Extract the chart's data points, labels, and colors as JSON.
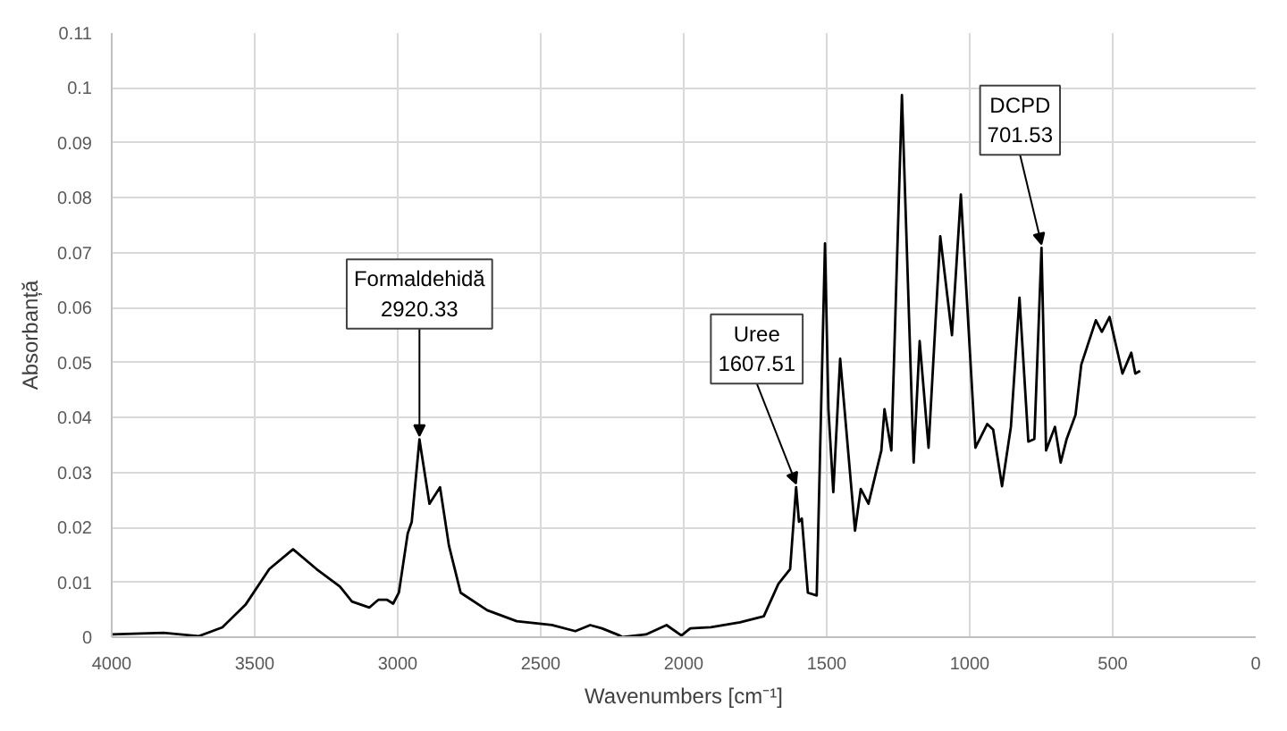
{
  "chart_data": {
    "type": "line",
    "xlabel": "Wavenumbers [cm⁻¹]",
    "ylabel": "Absorbanță",
    "xlim": [
      4000,
      0
    ],
    "ylim": [
      0,
      0.11
    ],
    "xticks": [
      4000,
      3500,
      3000,
      2500,
      2000,
      1500,
      1000,
      500,
      0
    ],
    "yticks": [
      0,
      0.01,
      0.02,
      0.03,
      0.04,
      0.05,
      0.06,
      0.07,
      0.08,
      0.09,
      0.1,
      0.11
    ],
    "grid": true,
    "marker": "none",
    "line_style": "solid",
    "series": [
      {
        "color": "#000000",
        "x": [
          4000,
          3819,
          3695,
          3613,
          3531,
          3449,
          3366,
          3284,
          3202,
          3160,
          3099,
          3068,
          3037,
          3016,
          2996,
          2965,
          2951,
          2924,
          2889,
          2852,
          2821,
          2780,
          2687,
          2584,
          2461,
          2379,
          2327,
          2286,
          2224,
          2214,
          2132,
          2060,
          2008,
          1977,
          1905,
          1803,
          1720,
          1669,
          1628,
          1607,
          1597,
          1587,
          1566,
          1535,
          1506,
          1494,
          1477,
          1453,
          1401,
          1381,
          1354,
          1329,
          1309,
          1298,
          1274,
          1237,
          1196,
          1175,
          1144,
          1103,
          1062,
          1031,
          980,
          939,
          918,
          887,
          856,
          826,
          795,
          774,
          749,
          733,
          702,
          682,
          661,
          630,
          610,
          559,
          538,
          511,
          466,
          435,
          421,
          404
        ],
        "values": [
          0.0005,
          0.0008,
          0.0002,
          0.0018,
          0.006,
          0.0124,
          0.016,
          0.0124,
          0.0092,
          0.0065,
          0.0054,
          0.0068,
          0.0068,
          0.0061,
          0.0081,
          0.0189,
          0.021,
          0.036,
          0.0243,
          0.0273,
          0.0167,
          0.0081,
          0.0049,
          0.0029,
          0.0022,
          0.0011,
          0.0022,
          0.0016,
          0.0003,
          0.0,
          0.0005,
          0.0022,
          0.0003,
          0.0016,
          0.0018,
          0.0027,
          0.0038,
          0.0097,
          0.0124,
          0.0273,
          0.021,
          0.0216,
          0.0081,
          0.0076,
          0.0717,
          0.0415,
          0.0264,
          0.0507,
          0.0194,
          0.027,
          0.0243,
          0.0297,
          0.034,
          0.0415,
          0.034,
          0.0987,
          0.0318,
          0.0539,
          0.0345,
          0.073,
          0.055,
          0.0806,
          0.0345,
          0.0388,
          0.0378,
          0.0275,
          0.0383,
          0.0618,
          0.0356,
          0.0361,
          0.0709,
          0.034,
          0.0383,
          0.0318,
          0.0361,
          0.0405,
          0.0496,
          0.0577,
          0.0556,
          0.0583,
          0.048,
          0.0518,
          0.048,
          0.0485
        ]
      }
    ],
    "annotations": [
      {
        "text": "Formaldehidă\n2920.33",
        "x": 2924,
        "y": 0.036
      },
      {
        "text": "Uree\n1607.51",
        "x": 1607,
        "y": 0.0273
      },
      {
        "text": "DCPD\n701.53",
        "x": 749,
        "y": 0.0709
      }
    ]
  }
}
